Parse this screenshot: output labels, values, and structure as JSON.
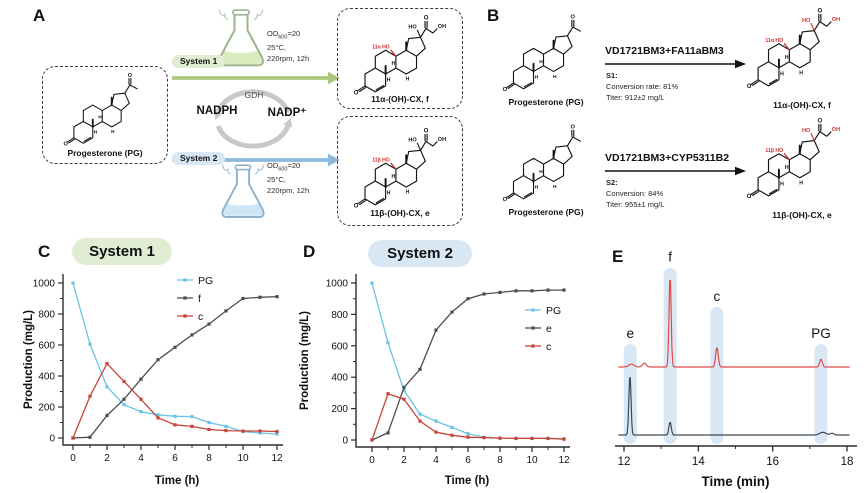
{
  "panelA": {
    "label": "A",
    "substrate_label": "Progesterone (PG)",
    "system1": "System 1",
    "system2": "System 2",
    "od_pre": "OD",
    "od_sub": "600",
    "od_post": "=20",
    "temp": "25°C,",
    "shake": "220rpm, 12h",
    "gdh": "GDH",
    "nadph": "NADPH",
    "nadp": "NADP⁺",
    "product1_label": "11α-(OH)-CX, f",
    "product2_label": "11β-(OH)-CX, e",
    "ann_alpha": "11α HO",
    "ann_beta": "11β HO"
  },
  "panelB": {
    "label": "B",
    "rxn1": {
      "substrate": "Progesterone (PG)",
      "enzymes": "VD1721BM3+FA11aBM3",
      "step": "S1:",
      "conversion": "Conversion rate: 81%",
      "titer": "Titer: 912±2 mg/L",
      "product": "11α-(OH)-CX, f"
    },
    "rxn2": {
      "substrate": "Progesterone (PG)",
      "enzymes": "VD1721BM3+CYP5311B2",
      "step": "S2:",
      "conversion": "Conversion: 84%",
      "titer": "Titer: 955±1 mg/L",
      "product": "11β-(OH)-CX, e"
    }
  },
  "panelC": {
    "label": "C",
    "title": "System 1"
  },
  "panelD": {
    "label": "D",
    "title": "System 2"
  },
  "panelE": {
    "label": "E"
  },
  "atoms": {
    "o": "O",
    "h": "H",
    "ho": "HO",
    "oh": "OH"
  },
  "colors": {
    "red": "#d32f2f",
    "green_arrow": "#aac97e",
    "blue_arrow": "#8cb8dc",
    "pill_green": "#e0edd2",
    "pill_blue": "#d9e7f5",
    "axis": "#2b2b2b",
    "band": "#cfe1f3",
    "series_pg": "#68c3e4",
    "series_dark": "#4d4d4d",
    "series_c": "#c9433b",
    "trace_red": "#e14b4b",
    "trace_dark": "#3d4a54",
    "gdh_arc": "#c8c8c8"
  },
  "chart_data": [
    {
      "id": "system1",
      "type": "line",
      "title": "System 1",
      "xlabel": "Time (h)",
      "ylabel": "Production (mg/L)",
      "xlim": [
        0,
        12
      ],
      "ylim": [
        0,
        1000
      ],
      "xticks": [
        0,
        2,
        4,
        6,
        8,
        10,
        12
      ],
      "xminor": [
        1,
        3,
        5,
        7,
        9,
        11
      ],
      "yticks": [
        0,
        200,
        400,
        600,
        800,
        1000
      ],
      "yminor": [
        100,
        300,
        500,
        700,
        900
      ],
      "legend_pos": "inner-top-right",
      "x": [
        0,
        1,
        2,
        3,
        4,
        5,
        6,
        7,
        8,
        9,
        10,
        11,
        12
      ],
      "series": [
        {
          "name": "PG",
          "color": "#68c3e4",
          "values": [
            1000,
            605,
            330,
            215,
            170,
            150,
            140,
            138,
            100,
            75,
            42,
            32,
            26
          ]
        },
        {
          "name": "f",
          "color": "#4d4d4d",
          "values": [
            0,
            5,
            145,
            250,
            380,
            505,
            585,
            665,
            735,
            820,
            900,
            908,
            912
          ]
        },
        {
          "name": "c",
          "color": "#c9433b",
          "values": [
            0,
            270,
            480,
            365,
            250,
            130,
            85,
            75,
            55,
            48,
            45,
            45,
            42
          ]
        }
      ]
    },
    {
      "id": "system2",
      "type": "line",
      "title": "System 2",
      "xlabel": "Time (h)",
      "ylabel": "Production (mg/L)",
      "xlim": [
        0,
        12
      ],
      "ylim": [
        0,
        1000
      ],
      "xticks": [
        0,
        2,
        4,
        6,
        8,
        10,
        12
      ],
      "xminor": [
        1,
        3,
        5,
        7,
        9,
        11
      ],
      "yticks": [
        0,
        200,
        400,
        600,
        800,
        1000
      ],
      "yminor": [
        100,
        300,
        500,
        700,
        900
      ],
      "legend_pos": "inner-right",
      "x": [
        0,
        1,
        2,
        3,
        4,
        5,
        6,
        7,
        8,
        9,
        10,
        11,
        12
      ],
      "series": [
        {
          "name": "PG",
          "color": "#68c3e4",
          "values": [
            1000,
            620,
            315,
            165,
            120,
            80,
            40,
            18,
            12,
            10,
            10,
            10,
            8
          ]
        },
        {
          "name": "e",
          "color": "#4d4d4d",
          "values": [
            0,
            45,
            335,
            450,
            700,
            815,
            900,
            930,
            940,
            950,
            950,
            955,
            955
          ]
        },
        {
          "name": "c",
          "color": "#c9433b",
          "values": [
            0,
            295,
            260,
            120,
            50,
            30,
            18,
            15,
            12,
            10,
            10,
            10,
            5
          ]
        }
      ]
    },
    {
      "id": "hplc",
      "type": "chromatogram",
      "xlabel": "Time (min)",
      "xscale": [
        12,
        18
      ],
      "xdomain": [
        11.85,
        18.08
      ],
      "xticks": [
        12,
        14,
        16,
        18
      ],
      "xminor": [
        13,
        15,
        17
      ],
      "band_color": "#cfe1f3",
      "bands": [
        {
          "label": "e",
          "x": 12.17,
          "top": 0.48
        },
        {
          "label": "f",
          "x": 13.24,
          "top": 0.09
        },
        {
          "label": "c",
          "x": 14.5,
          "top": 0.29
        },
        {
          "label": "PG",
          "x": 17.3,
          "top": 0.48
        }
      ],
      "traces": [
        {
          "color": "#3d4a54",
          "baseline": 0.056,
          "peaks": [
            {
              "x": 12.16,
              "h": 0.31,
              "w": 0.04
            },
            {
              "x": 13.24,
              "h": 0.066,
              "w": 0.045
            },
            {
              "x": 17.35,
              "h": 0.014,
              "w": 0.12
            },
            {
              "x": 17.6,
              "h": 0.009,
              "w": 0.07
            }
          ]
        },
        {
          "color": "#e14b4b",
          "baseline": 0.403,
          "peaks": [
            {
              "x": 12.2,
              "h": 0.015,
              "w": 0.1
            },
            {
              "x": 12.55,
              "h": 0.02,
              "w": 0.07
            },
            {
              "x": 13.24,
              "h": 0.47,
              "w": 0.04
            },
            {
              "x": 14.5,
              "h": 0.1,
              "w": 0.05
            },
            {
              "x": 17.3,
              "h": 0.04,
              "w": 0.05
            }
          ]
        }
      ]
    }
  ]
}
